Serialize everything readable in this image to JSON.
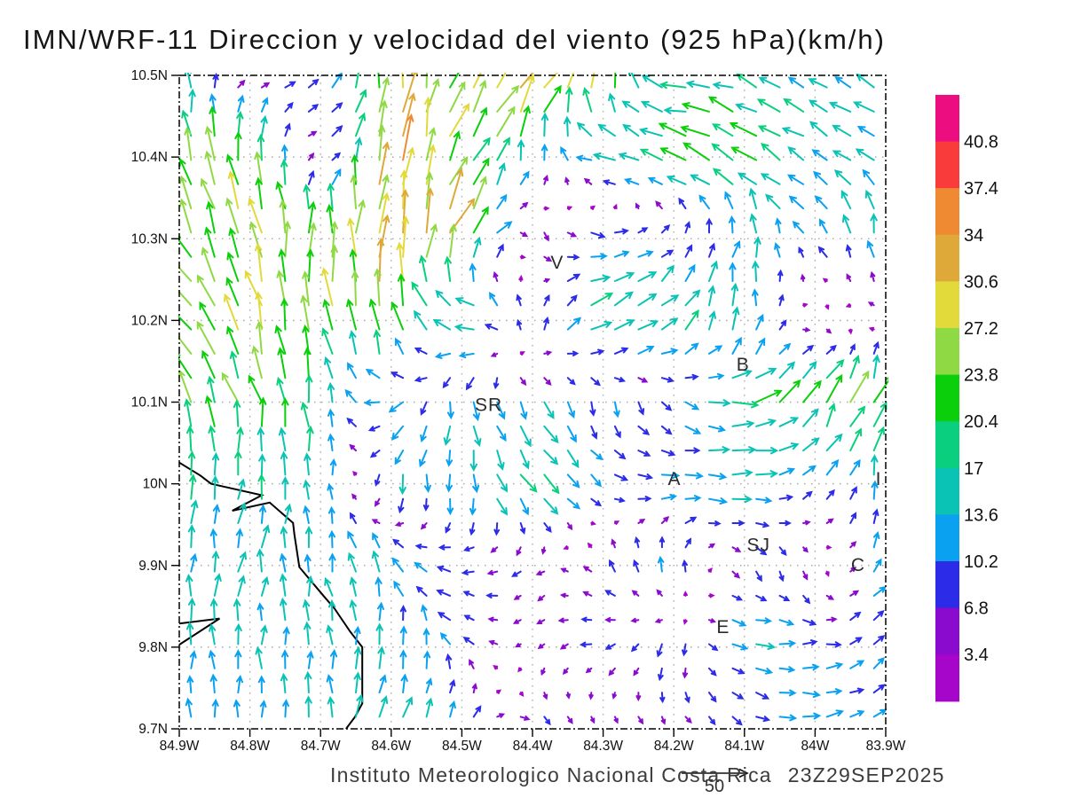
{
  "title": "IMN/WRF-11 Direccion y velocidad del viento (925 hPa)(km/h)",
  "footer": {
    "institution": "Instituto Meteorologico Nacional Costa Rica",
    "timestamp": "23Z29SEP2025"
  },
  "reference_vector": {
    "label": "50",
    "value_kmh": 50
  },
  "axes": {
    "x_tick_labels": [
      "84.9W",
      "84.8W",
      "84.7W",
      "84.6W",
      "84.5W",
      "84.4W",
      "84.3W",
      "84.2W",
      "84.1W",
      "84W",
      "83.9W"
    ],
    "x_tick_lons_w": [
      84.9,
      84.8,
      84.7,
      84.6,
      84.5,
      84.4,
      84.3,
      84.2,
      84.1,
      84.0,
      83.9
    ],
    "y_tick_labels": [
      "10.5N",
      "10.4N",
      "10.3N",
      "10.2N",
      "10.1N",
      "10N",
      "9.9N",
      "9.8N",
      "9.7N"
    ],
    "y_tick_lats_n": [
      10.5,
      10.4,
      10.3,
      10.2,
      10.1,
      10.0,
      9.9,
      9.8,
      9.7
    ]
  },
  "colorbar": {
    "labels_top_to_bottom": [
      "40.8",
      "37.4",
      "34",
      "30.6",
      "27.2",
      "23.8",
      "20.4",
      "17",
      "13.6",
      "10.2",
      "6.8",
      "3.4"
    ]
  },
  "stations": [
    {
      "label": "V",
      "lon_w": 84.365,
      "lat_n": 10.271
    },
    {
      "label": "SR",
      "lon_w": 84.462,
      "lat_n": 10.097
    },
    {
      "label": "B",
      "lon_w": 84.102,
      "lat_n": 10.146
    },
    {
      "label": "A",
      "lon_w": 84.199,
      "lat_n": 10.006
    },
    {
      "label": "SJ",
      "lon_w": 84.08,
      "lat_n": 9.925
    },
    {
      "label": "C",
      "lon_w": 83.939,
      "lat_n": 9.901
    },
    {
      "label": "E",
      "lon_w": 84.13,
      "lat_n": 9.825
    },
    {
      "label": "I",
      "lon_w": 83.91,
      "lat_n": 10.006
    }
  ],
  "chart_data": {
    "type": "vector_field",
    "title": "IMN/WRF-11 Direccion y velocidad del viento (925 hPa)(km/h)",
    "units": "km/h",
    "level": "925 hPa",
    "lon_range_deg_w": [
      84.9,
      83.9
    ],
    "lat_range_deg_n": [
      9.7,
      10.5
    ],
    "grid_on": true,
    "legend_position": "right-colorbar",
    "speed_levels": [
      3.4,
      6.8,
      10.2,
      13.6,
      17,
      20.4,
      23.8,
      27.2,
      30.6,
      34,
      37.4,
      40.8
    ],
    "colors_slow_to_fast": [
      "#A606C9",
      "#8A0ACE",
      "#2B2BE8",
      "#0AA1F0",
      "#0BC3B4",
      "#0ACF7E",
      "#0ACF0A",
      "#8FD945",
      "#E2D93B",
      "#DFA939",
      "#EF8A33",
      "#F93B3B",
      "#EC0D80"
    ],
    "grid_lons_w": [
      84.9,
      84.8,
      84.7,
      84.6,
      84.5,
      84.4,
      84.3,
      84.2,
      84.1,
      84.0,
      83.9
    ],
    "grid_lats_n": [
      10.5,
      10.4,
      10.3,
      10.2,
      10.1,
      10.0,
      9.9,
      9.8,
      9.7
    ],
    "speed_kmh": [
      [
        15,
        6,
        12,
        30,
        24,
        38,
        26,
        17,
        15,
        14,
        14
      ],
      [
        25,
        24,
        6,
        32,
        23,
        16,
        16,
        20,
        22,
        15,
        15
      ],
      [
        22,
        26,
        24,
        33,
        28,
        9,
        12,
        8,
        14,
        12,
        16
      ],
      [
        24,
        26,
        24,
        28,
        20,
        10,
        20,
        18,
        17,
        7,
        6
      ],
      [
        23,
        22,
        18,
        13,
        14,
        14,
        10,
        9,
        20,
        24,
        24
      ],
      [
        16,
        16,
        15,
        13,
        13,
        18,
        10,
        13,
        14,
        10,
        15
      ],
      [
        15,
        15,
        14,
        15,
        10,
        6,
        9,
        12,
        9,
        6,
        12
      ],
      [
        14,
        14,
        14,
        13,
        10,
        5,
        8,
        10,
        14,
        11,
        11
      ],
      [
        13,
        13,
        14,
        18,
        12,
        8,
        6,
        6,
        9,
        13,
        11
      ]
    ],
    "dir_deg_toward": [
      [
        0,
        90,
        45,
        0,
        30,
        35,
        10,
        280,
        290,
        305,
        310
      ],
      [
        350,
        355,
        95,
        5,
        25,
        10,
        280,
        285,
        300,
        300,
        305
      ],
      [
        330,
        345,
        0,
        0,
        30,
        160,
        90,
        40,
        10,
        320,
        0
      ],
      [
        320,
        340,
        355,
        0,
        280,
        0,
        60,
        45,
        0,
        150,
        260
      ],
      [
        340,
        345,
        350,
        250,
        180,
        150,
        170,
        130,
        85,
        30,
        20
      ],
      [
        0,
        10,
        0,
        190,
        170,
        140,
        120,
        90,
        90,
        40,
        10
      ],
      [
        5,
        10,
        350,
        330,
        270,
        230,
        320,
        350,
        140,
        180,
        30
      ],
      [
        0,
        0,
        355,
        10,
        320,
        220,
        260,
        200,
        90,
        90,
        45
      ],
      [
        0,
        0,
        0,
        15,
        40,
        130,
        150,
        140,
        130,
        85,
        50
      ]
    ],
    "coastline_lon_lat": {
      "main": [
        [
          84.9,
          10.026
        ],
        [
          84.87,
          10.01
        ],
        [
          84.855,
          10.0
        ],
        [
          84.783,
          9.986
        ],
        [
          84.825,
          9.967
        ],
        [
          84.772,
          9.977
        ],
        [
          84.739,
          9.952
        ],
        [
          84.737,
          9.938
        ],
        [
          84.73,
          9.898
        ],
        [
          84.695,
          9.862
        ],
        [
          84.68,
          9.847
        ],
        [
          84.658,
          9.819
        ],
        [
          84.641,
          9.8
        ],
        [
          84.641,
          9.731
        ],
        [
          84.651,
          9.715
        ],
        [
          84.664,
          9.7
        ]
      ],
      "puntarenas_spit": [
        [
          84.9,
          9.829
        ],
        [
          84.843,
          9.835
        ],
        [
          84.9,
          9.803
        ]
      ]
    }
  }
}
